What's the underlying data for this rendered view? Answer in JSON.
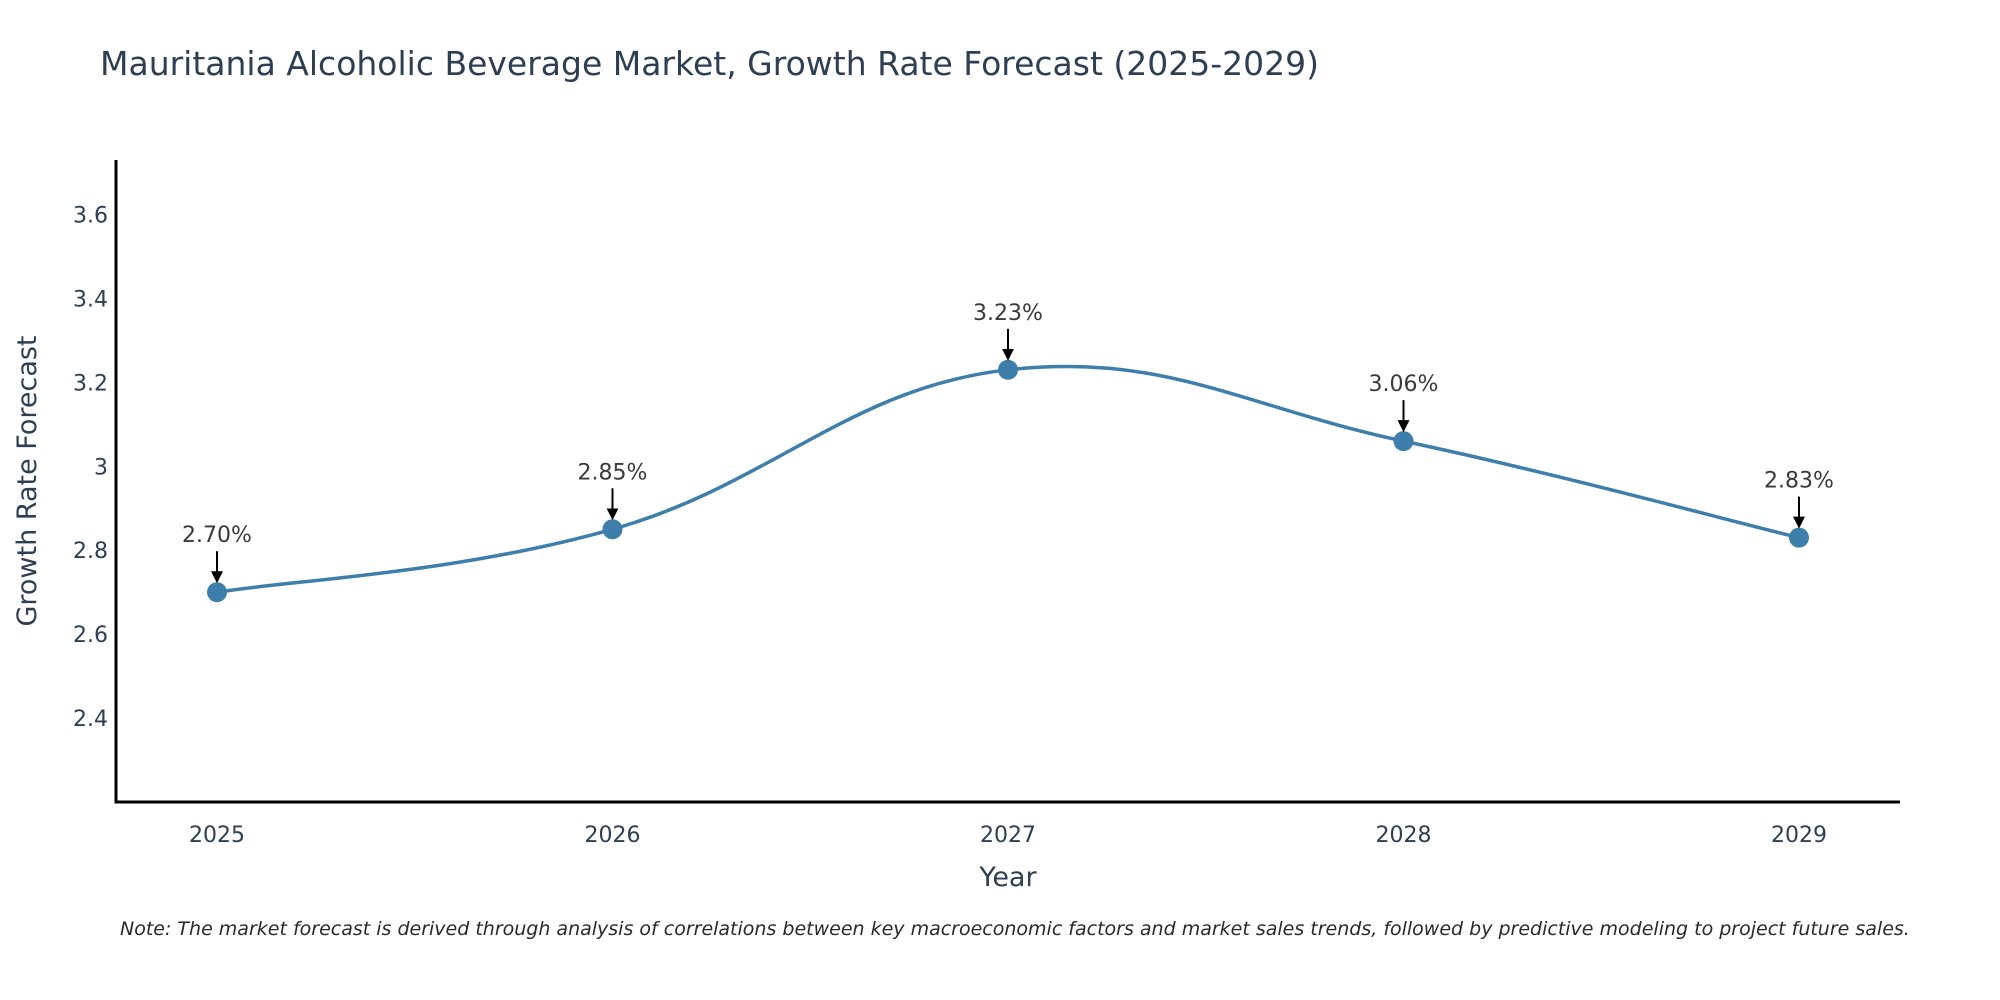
{
  "chart_data": {
    "type": "line",
    "title": "Mauritania Alcoholic Beverage Market, Growth Rate Forecast (2025-2029)",
    "xlabel": "Year",
    "ylabel": "Growth Rate Forecast",
    "categories": [
      "2025",
      "2026",
      "2027",
      "2028",
      "2029"
    ],
    "values": [
      2.7,
      2.85,
      3.23,
      3.06,
      2.83
    ],
    "annotations": [
      "2.70%",
      "2.85%",
      "3.23%",
      "3.06%",
      "2.83%"
    ],
    "ylim": [
      2.2,
      3.73
    ],
    "yticks": [
      2.4,
      2.6,
      2.8,
      3.0,
      3.2,
      3.4,
      3.6
    ],
    "ytick_labels": [
      "2.4",
      "2.6",
      "2.8",
      "3",
      "3.2",
      "3.4",
      "3.6"
    ],
    "series_color": "#3d7eab",
    "grid": false
  },
  "note": "Note: The market forecast is derived through analysis of correlations between key macroeconomic factors and market sales trends, followed by predictive modeling to project future sales."
}
